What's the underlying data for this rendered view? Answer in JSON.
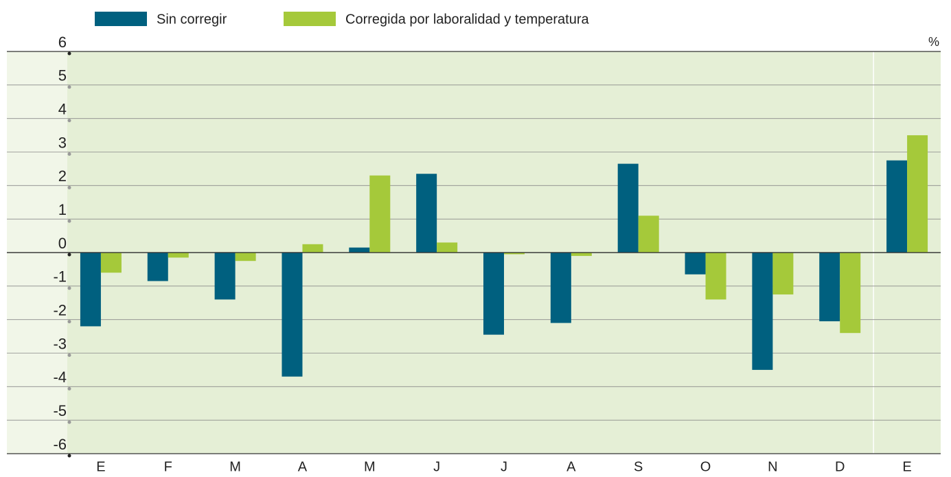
{
  "chart_data": {
    "type": "bar",
    "y_axis_label": "%",
    "categories": [
      "E",
      "F",
      "M",
      "A",
      "M",
      "J",
      "J",
      "A",
      "S",
      "O",
      "N",
      "D",
      "E"
    ],
    "series": [
      {
        "name": "Sin corregir",
        "color": "#00607f",
        "values": [
          -2.2,
          -0.85,
          -1.4,
          -3.7,
          0.15,
          2.35,
          -2.45,
          -2.1,
          2.65,
          -0.65,
          -3.5,
          -2.05,
          2.75
        ]
      },
      {
        "name": "Corregida por laboralidad y temperatura",
        "color": "#a5c93a",
        "values": [
          -0.6,
          -0.15,
          -0.25,
          0.25,
          2.3,
          0.3,
          -0.05,
          -0.1,
          1.1,
          -1.4,
          -1.25,
          -2.4,
          3.5
        ]
      }
    ],
    "ylim": [
      -6,
      6
    ],
    "yticks": [
      -6,
      -5,
      -4,
      -3,
      -2,
      -1,
      0,
      1,
      2,
      3,
      4,
      5,
      6
    ],
    "grid": true
  }
}
